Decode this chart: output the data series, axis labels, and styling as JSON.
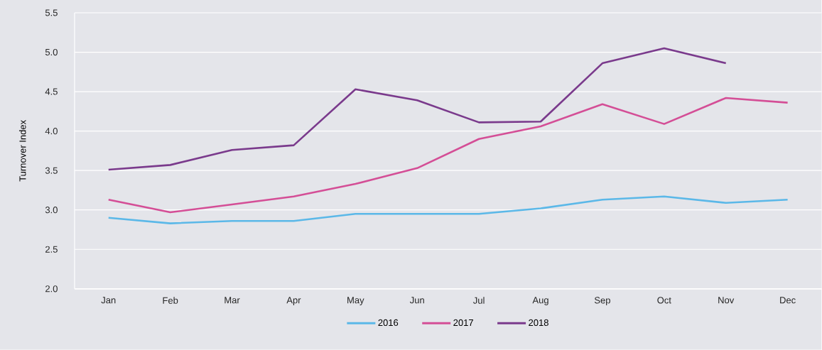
{
  "chart_data": {
    "type": "line",
    "ylabel": "Turnover Index",
    "categories": [
      "Jan",
      "Feb",
      "Mar",
      "Apr",
      "May",
      "Jun",
      "Jul",
      "Aug",
      "Sep",
      "Oct",
      "Nov",
      "Dec"
    ],
    "series": [
      {
        "name": "2016",
        "color": "#5bb8e8",
        "values": [
          2.9,
          2.83,
          2.86,
          2.86,
          2.95,
          2.95,
          2.95,
          3.02,
          3.13,
          3.17,
          3.09,
          3.13
        ]
      },
      {
        "name": "2017",
        "color": "#d44e96",
        "values": [
          3.13,
          2.97,
          3.07,
          3.17,
          3.33,
          3.53,
          3.9,
          4.06,
          4.34,
          4.09,
          4.42,
          4.36
        ]
      },
      {
        "name": "2018",
        "color": "#7a3a8c",
        "values": [
          3.51,
          3.57,
          3.76,
          3.82,
          4.53,
          4.39,
          4.11,
          4.12,
          4.86,
          5.05,
          4.86,
          null
        ]
      }
    ],
    "ylim": [
      2.0,
      5.5
    ],
    "yticks": [
      {
        "value": 2.0,
        "label": "2.0"
      },
      {
        "value": 2.5,
        "label": "2.5"
      },
      {
        "value": 3.0,
        "label": "3.0"
      },
      {
        "value": 3.5,
        "label": "3.5"
      },
      {
        "value": 4.0,
        "label": "4.0"
      },
      {
        "value": 4.5,
        "label": "4.5"
      },
      {
        "value": 5.0,
        "label": "5.0"
      },
      {
        "value": 5.5,
        "label": "5.5"
      }
    ],
    "grid": "y",
    "legend": "bottom",
    "marker": "none",
    "line_style": "solid"
  }
}
